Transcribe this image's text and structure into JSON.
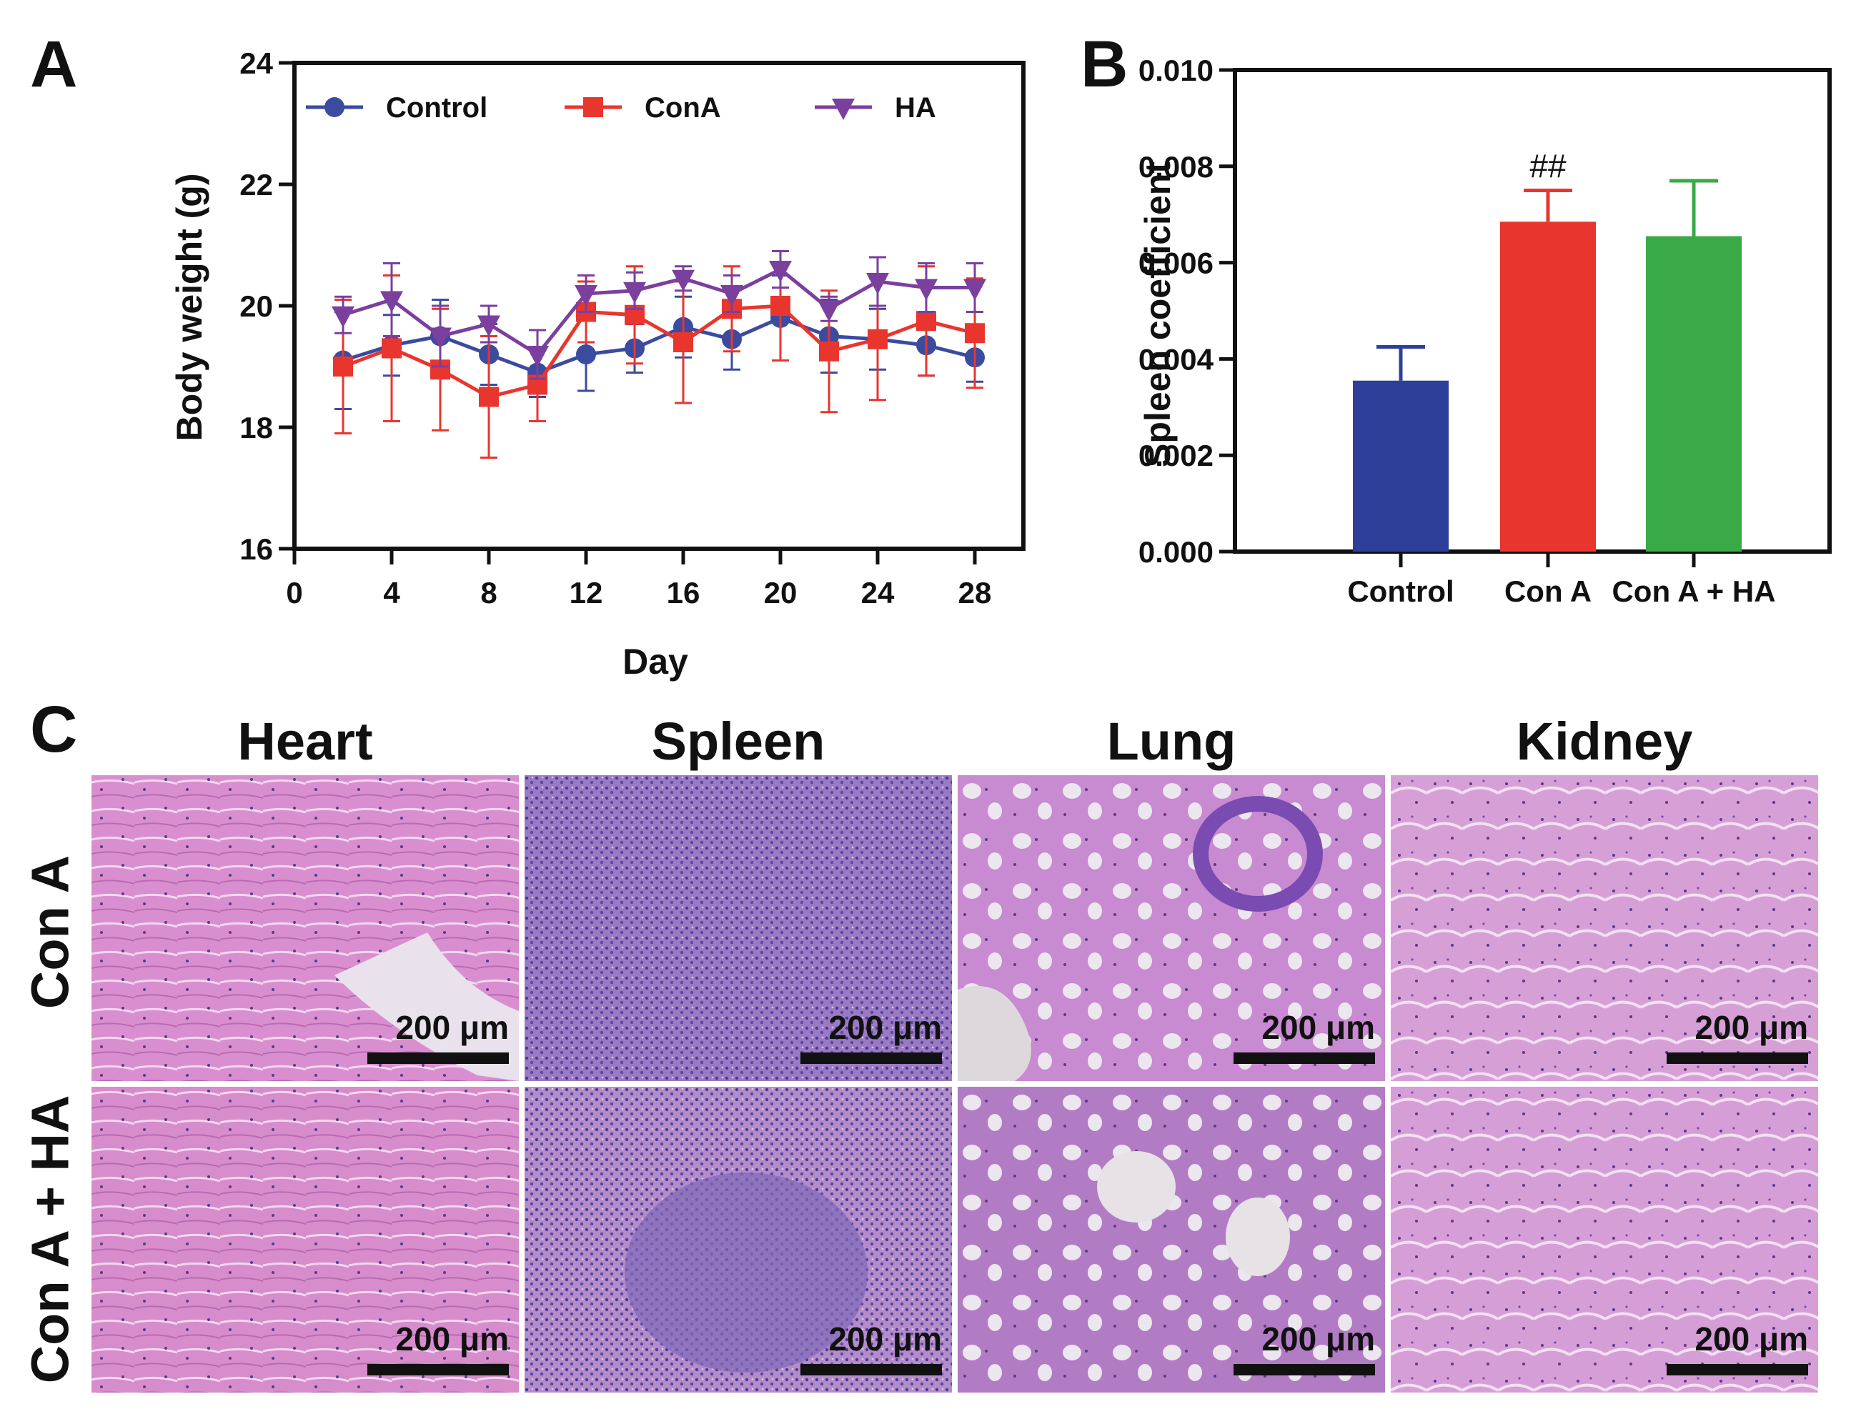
{
  "panels": {
    "a": "A",
    "b": "B",
    "c": "C"
  },
  "chart_data": [
    {
      "type": "line",
      "xlabel": "Day",
      "ylabel": "Body weight (g)",
      "xlim": [
        0,
        30
      ],
      "ylim": [
        16,
        24
      ],
      "xticks": [
        0,
        4,
        8,
        12,
        16,
        20,
        24,
        28
      ],
      "yticks": [
        16,
        18,
        20,
        22,
        24
      ],
      "legend_position": "top",
      "x": [
        2,
        4,
        6,
        8,
        10,
        12,
        14,
        16,
        18,
        20,
        22,
        24,
        26,
        28
      ],
      "series": [
        {
          "name": "Control",
          "color": "#3b4ba0",
          "marker": "circle",
          "values": [
            19.1,
            19.35,
            19.5,
            19.2,
            18.9,
            19.2,
            19.3,
            19.65,
            19.45,
            19.8,
            19.5,
            19.45,
            19.35,
            19.15
          ],
          "errors": [
            0.8,
            0.5,
            0.6,
            0.5,
            0.4,
            0.6,
            0.4,
            0.5,
            0.5,
            0.7,
            0.6,
            0.5,
            0.5,
            0.4
          ]
        },
        {
          "name": "ConA",
          "color": "#e8362e",
          "marker": "square",
          "values": [
            19.0,
            19.3,
            18.95,
            18.5,
            18.7,
            19.9,
            19.85,
            19.4,
            19.95,
            20.0,
            19.25,
            19.45,
            19.75,
            19.55
          ],
          "errors": [
            1.1,
            1.2,
            1.0,
            1.0,
            0.6,
            0.5,
            0.8,
            1.0,
            0.7,
            0.9,
            1.0,
            1.0,
            0.9,
            0.9
          ]
        },
        {
          "name": "HA",
          "color": "#7b3f9e",
          "marker": "triangle-down",
          "values": [
            19.85,
            20.1,
            19.5,
            19.7,
            19.2,
            20.2,
            20.25,
            20.45,
            20.2,
            20.6,
            19.95,
            20.4,
            20.3,
            20.3
          ],
          "errors": [
            0.3,
            0.6,
            0.5,
            0.3,
            0.4,
            0.3,
            0.3,
            0.2,
            0.3,
            0.3,
            0.2,
            0.4,
            0.4,
            0.4
          ]
        }
      ]
    },
    {
      "type": "bar",
      "ylabel": "Spleen coefficient",
      "ylim": [
        0,
        0.01
      ],
      "yticks": [
        "0.000",
        "0.002",
        "0.004",
        "0.006",
        "0.008",
        "0.010"
      ],
      "categories": [
        "Control",
        "Con A",
        "Con A + HA"
      ],
      "values": [
        0.00355,
        0.00685,
        0.00655
      ],
      "errors": [
        0.0007,
        0.00065,
        0.00115
      ],
      "colors": [
        "#2e3f99",
        "#e8362e",
        "#3aaa48"
      ],
      "annotations": [
        "",
        "##",
        ""
      ]
    }
  ],
  "histology": {
    "columns": [
      "Heart",
      "Spleen",
      "Lung",
      "Kidney"
    ],
    "rows": [
      "Con A",
      "Con A + HA"
    ],
    "scale_label": "200 μm"
  }
}
